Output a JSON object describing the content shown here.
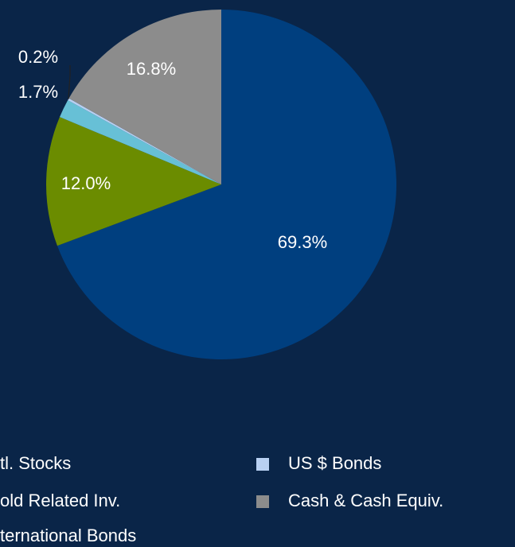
{
  "chart_data": {
    "type": "pie",
    "categories": [
      "tl. Stocks",
      "old Related Inv.",
      "ternational Bonds",
      "US $ Bonds",
      "Cash & Cash Equiv."
    ],
    "values": [
      69.3,
      12.0,
      1.7,
      0.2,
      16.8
    ],
    "value_labels": [
      "69.3%",
      "12.0%",
      "1.7%",
      "0.2%",
      "16.8%"
    ],
    "colors": [
      "#003f7f",
      "#6b8c00",
      "#67c0d6",
      "#b8d0f2",
      "#8c8c8c"
    ]
  }
}
